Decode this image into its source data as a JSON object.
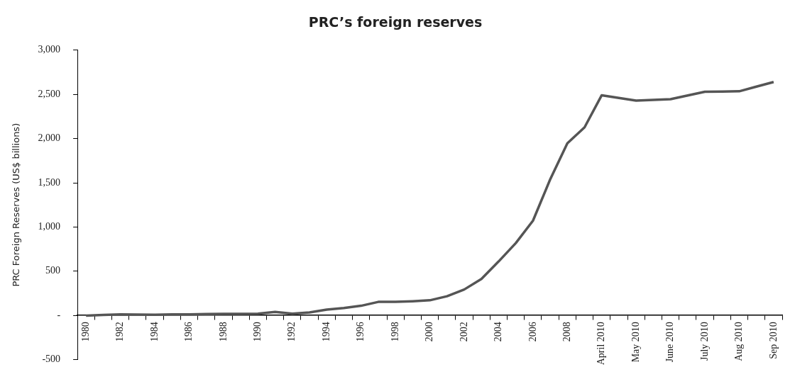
{
  "chart_data": {
    "type": "line",
    "title": "PRC’s foreign reserves",
    "ylabel": "PRC Foreign Reserves (US$ billions)",
    "categories": [
      "1980",
      null,
      "1982",
      null,
      "1984",
      null,
      "1986",
      null,
      "1988",
      null,
      "1990",
      null,
      "1992",
      null,
      "1994",
      null,
      "1996",
      null,
      "1998",
      null,
      "2000",
      null,
      "2002",
      null,
      "2004",
      null,
      "2006",
      null,
      "2008",
      null,
      "April 2010",
      null,
      "May 2010",
      null,
      "June 2010",
      null,
      "July 2010",
      null,
      "Aug 2010",
      null,
      "Sep 2010"
    ],
    "series": [
      {
        "color": "#555555",
        "values": [
          -2,
          5,
          11,
          9,
          8,
          12,
          11,
          15,
          18,
          17,
          20,
          40,
          19,
          33,
          66,
          84,
          109,
          153,
          153,
          160,
          171,
          217,
          293,
          413,
          610,
          818,
          1071,
          1538,
          1946,
          2127,
          2490,
          2460,
          2430,
          2438,
          2445,
          2488,
          2530,
          2532,
          2535,
          2588,
          2640
        ]
      }
    ],
    "ylim": [
      -500,
      3000
    ],
    "yticks": [
      {
        "value": -500,
        "label": "-500"
      },
      {
        "value": 0,
        "label": "-"
      },
      {
        "value": 500,
        "label": "500"
      },
      {
        "value": 1000,
        "label": "1,000"
      },
      {
        "value": 1500,
        "label": "1,500"
      },
      {
        "value": 2000,
        "label": "2,000"
      },
      {
        "value": 2500,
        "label": "2,500"
      },
      {
        "value": 3000,
        "label": "3,000"
      }
    ],
    "grid": false,
    "legend": false,
    "marker": "none",
    "line_style": "solid"
  }
}
